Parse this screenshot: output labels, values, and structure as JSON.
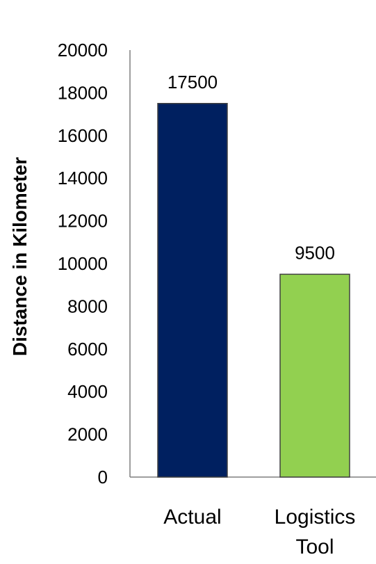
{
  "chart_data": {
    "type": "bar",
    "title": "",
    "xlabel": "",
    "ylabel": "Distance in Kilometer",
    "ylim": [
      0,
      20000
    ],
    "yticks": [
      0,
      2000,
      4000,
      6000,
      8000,
      10000,
      12000,
      14000,
      16000,
      18000,
      20000
    ],
    "yticks_text": [
      "0",
      "2000",
      "4000",
      "6000",
      "8000",
      "10000",
      "12000",
      "14000",
      "16000",
      "18000",
      "20000"
    ],
    "grid": false,
    "legend": "none",
    "categories": [
      "Actual",
      "Logistics Tool"
    ],
    "category_lines": [
      [
        "Actual"
      ],
      [
        "Logistics",
        "Tool"
      ]
    ],
    "values": [
      17500,
      9500
    ],
    "data_labels": [
      "17500",
      "9500"
    ],
    "colors": [
      "#002060",
      "#92D050"
    ]
  }
}
